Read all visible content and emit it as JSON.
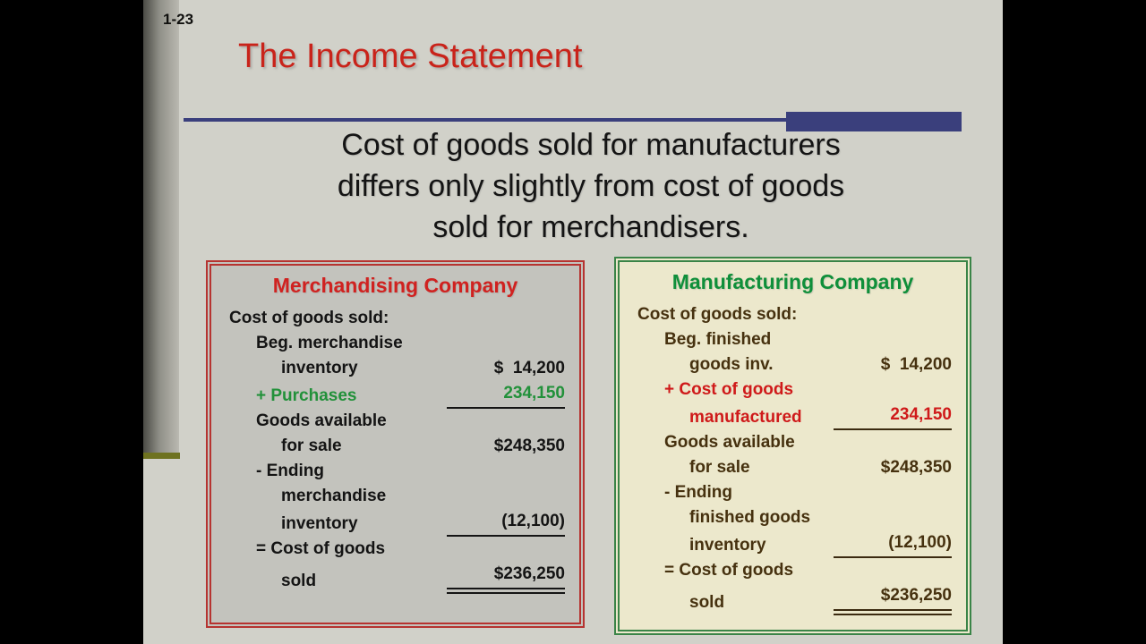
{
  "slide": {
    "number": "1-23",
    "title": "The Income Statement"
  },
  "body": {
    "lines": [
      "Cost of goods sold for manufacturers",
      "differs only slightly from cost of goods",
      "sold for merchandisers."
    ]
  },
  "colors": {
    "slide_background": "#d1d1c9",
    "title_red": "#c9231a",
    "accent_navy": "#3a3f7c",
    "sidebar_olive": "#6e7220",
    "left_box_background": "#c3c3bd",
    "left_box_border_red": "#b63330",
    "right_box_background": "#ece8cc",
    "right_box_border_green": "#3a8447",
    "green_text": "#22913a",
    "red_text": "#cf1a1a",
    "brown_text": "#46310f"
  },
  "boxes": {
    "left": {
      "title": "Merchandising Company",
      "rows": [
        {
          "label": "Cost of goods sold:",
          "indent": 0,
          "value": "",
          "color": null,
          "underline": null
        },
        {
          "label": "Beg. merchandise",
          "indent": 1,
          "value": "",
          "color": null,
          "underline": null
        },
        {
          "label": "inventory",
          "indent": 2,
          "value": "$  14,200",
          "color": null,
          "underline": null
        },
        {
          "label": "+ Purchases",
          "indent": 1,
          "value": "234,150",
          "color": "green",
          "underline": "single"
        },
        {
          "label": "Goods available",
          "indent": 1,
          "value": "",
          "color": null,
          "underline": null
        },
        {
          "label": "for sale",
          "indent": 2,
          "value": "$248,350",
          "color": null,
          "underline": null
        },
        {
          "label": "- Ending",
          "indent": 1,
          "value": "",
          "color": null,
          "underline": null
        },
        {
          "label": "merchandise",
          "indent": 2,
          "value": "",
          "color": null,
          "underline": null
        },
        {
          "label": "inventory",
          "indent": 2,
          "value": "(12,100)",
          "color": null,
          "underline": "single"
        },
        {
          "label": "= Cost of goods",
          "indent": 1,
          "value": "",
          "color": null,
          "underline": null
        },
        {
          "label": "sold",
          "indent": 2,
          "value": "$236,250",
          "color": null,
          "underline": "double"
        }
      ]
    },
    "right": {
      "title": "Manufacturing Company",
      "rows": [
        {
          "label": "Cost of goods sold:",
          "indent": 0,
          "value": "",
          "color": null,
          "underline": null
        },
        {
          "label": "Beg. finished",
          "indent": 1,
          "value": "",
          "color": null,
          "underline": null
        },
        {
          "label": "goods inv.",
          "indent": 2,
          "value": "$  14,200",
          "color": null,
          "underline": null
        },
        {
          "label": "+ Cost of goods",
          "indent": 1,
          "value": "",
          "color": "red",
          "underline": null
        },
        {
          "label": "manufactured",
          "indent": 2,
          "value": "234,150",
          "color": "red",
          "underline": "single"
        },
        {
          "label": "Goods available",
          "indent": 1,
          "value": "",
          "color": null,
          "underline": null
        },
        {
          "label": "for sale",
          "indent": 2,
          "value": "$248,350",
          "color": null,
          "underline": null
        },
        {
          "label": "- Ending",
          "indent": 1,
          "value": "",
          "color": null,
          "underline": null
        },
        {
          "label": "finished goods",
          "indent": 2,
          "value": "",
          "color": null,
          "underline": null
        },
        {
          "label": "inventory",
          "indent": 2,
          "value": "(12,100)",
          "color": null,
          "underline": "single"
        },
        {
          "label": "= Cost of goods",
          "indent": 1,
          "value": "",
          "color": null,
          "underline": null
        },
        {
          "label": "sold",
          "indent": 2,
          "value": "$236,250",
          "color": null,
          "underline": "double"
        }
      ]
    }
  }
}
